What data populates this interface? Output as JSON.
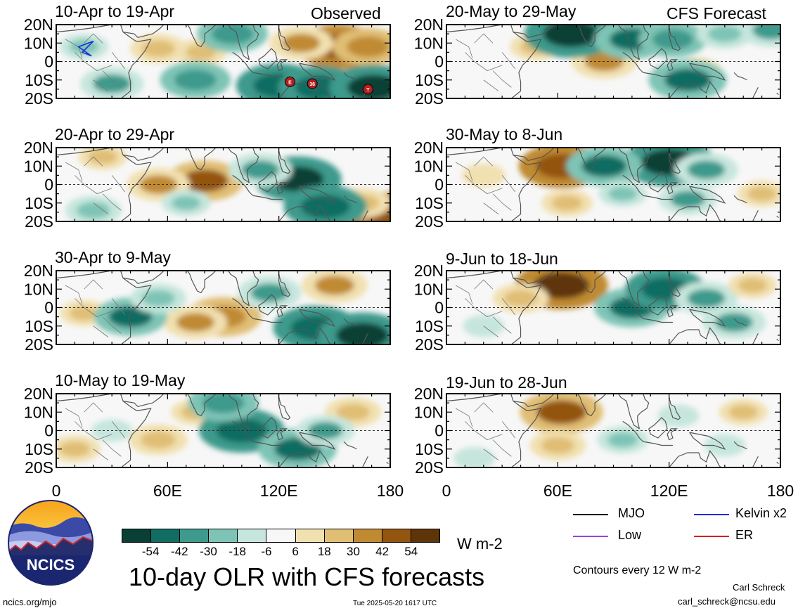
{
  "chart_data": {
    "type": "heatmap",
    "title": "10-day OLR with CFS forecasts",
    "columns": [
      {
        "header": "Observed",
        "panels": [
          "10-Apr to 19-Apr",
          "20-Apr to 29-Apr",
          "30-Apr to 9-May",
          "10-May to 19-May"
        ]
      },
      {
        "header": "CFS Forecast",
        "panels": [
          "20-May to 29-May",
          "30-May to 8-Jun",
          "9-Jun to 18-Jun",
          "19-Jun to 28-Jun"
        ]
      }
    ],
    "lat_ticks": [
      "20N",
      "10N",
      "0",
      "10S",
      "20S"
    ],
    "lon_ticks": [
      "0",
      "60E",
      "120E",
      "180"
    ],
    "xlim": [
      0,
      180
    ],
    "ylim": [
      -20,
      20
    ],
    "colorbar": {
      "labels": [
        "-54",
        "-42",
        "-30",
        "-18",
        "-6",
        "6",
        "18",
        "30",
        "42",
        "54"
      ],
      "colors": [
        "#0a3f35",
        "#116d62",
        "#3e9a8c",
        "#7ec4b6",
        "#c6e6dd",
        "#f7f7f7",
        "#f1e0b0",
        "#e0be74",
        "#c08a33",
        "#935510",
        "#5e3509"
      ],
      "units": "W m-2"
    },
    "legend": [
      {
        "label": "MJO",
        "color": "#000000"
      },
      {
        "label": "Kelvin x2",
        "color": "#1f2fd6"
      },
      {
        "label": "Low",
        "color": "#9b42d8"
      },
      {
        "label": "ER",
        "color": "#d81e1e"
      }
    ],
    "storm_markers": [
      "E",
      "36",
      "T"
    ],
    "anomalies": [
      [
        {
          "lon": 152,
          "lat": 8,
          "v": 48
        },
        {
          "lon": 132,
          "lat": 10,
          "v": 30
        },
        {
          "lon": 168,
          "lat": 8,
          "v": 36
        },
        {
          "lon": 55,
          "lat": 7,
          "v": 24
        },
        {
          "lon": 78,
          "lat": 5,
          "v": 20
        },
        {
          "lon": 120,
          "lat": -13,
          "v": -48
        },
        {
          "lon": 142,
          "lat": -14,
          "v": -46
        },
        {
          "lon": 171,
          "lat": -14,
          "v": -50
        },
        {
          "lon": 95,
          "lat": 15,
          "v": -36
        },
        {
          "lon": 75,
          "lat": -10,
          "v": -36
        },
        {
          "lon": 30,
          "lat": -12,
          "v": -30
        },
        {
          "lon": 15,
          "lat": 8,
          "v": -18
        }
      ],
      [
        {
          "lon": 80,
          "lat": 2,
          "v": 42
        },
        {
          "lon": 55,
          "lat": 0,
          "v": 30
        },
        {
          "lon": 25,
          "lat": 15,
          "v": 18
        },
        {
          "lon": 180,
          "lat": -16,
          "v": 48
        },
        {
          "lon": 165,
          "lat": -10,
          "v": 24
        },
        {
          "lon": 130,
          "lat": 3,
          "v": -50
        },
        {
          "lon": 145,
          "lat": -12,
          "v": -46
        },
        {
          "lon": 110,
          "lat": 8,
          "v": -30
        },
        {
          "lon": 20,
          "lat": -14,
          "v": -24
        },
        {
          "lon": 70,
          "lat": -10,
          "v": -18
        }
      ],
      [
        {
          "lon": 90,
          "lat": -5,
          "v": 40
        },
        {
          "lon": 75,
          "lat": -8,
          "v": 30
        },
        {
          "lon": 150,
          "lat": 12,
          "v": 32
        },
        {
          "lon": 15,
          "lat": -3,
          "v": 18
        },
        {
          "lon": 140,
          "lat": -11,
          "v": -48
        },
        {
          "lon": 165,
          "lat": -15,
          "v": -50
        },
        {
          "lon": 40,
          "lat": -5,
          "v": -38
        },
        {
          "lon": 115,
          "lat": 8,
          "v": -30
        },
        {
          "lon": 55,
          "lat": 5,
          "v": -24
        }
      ],
      [
        {
          "lon": 55,
          "lat": -5,
          "v": 26
        },
        {
          "lon": 10,
          "lat": -10,
          "v": 20
        },
        {
          "lon": 160,
          "lat": 10,
          "v": 24
        },
        {
          "lon": 75,
          "lat": 10,
          "v": 18
        },
        {
          "lon": 100,
          "lat": 0,
          "v": -48
        },
        {
          "lon": 130,
          "lat": -10,
          "v": -42
        },
        {
          "lon": 90,
          "lat": 15,
          "v": -36
        },
        {
          "lon": 145,
          "lat": 0,
          "v": -26
        },
        {
          "lon": 30,
          "lat": 0,
          "v": -12
        }
      ],
      [
        {
          "lon": 85,
          "lat": 0,
          "v": 32
        },
        {
          "lon": 48,
          "lat": 8,
          "v": 20
        },
        {
          "lon": 135,
          "lat": -5,
          "v": 18
        },
        {
          "lon": 67,
          "lat": 15,
          "v": -54
        },
        {
          "lon": 100,
          "lat": 12,
          "v": -40
        },
        {
          "lon": 122,
          "lat": 12,
          "v": -34
        },
        {
          "lon": 130,
          "lat": -10,
          "v": -42
        },
        {
          "lon": 175,
          "lat": 17,
          "v": -30
        },
        {
          "lon": 150,
          "lat": 15,
          "v": -24
        }
      ],
      [
        {
          "lon": 62,
          "lat": 10,
          "v": 48
        },
        {
          "lon": 65,
          "lat": -10,
          "v": 20
        },
        {
          "lon": 170,
          "lat": -5,
          "v": 18
        },
        {
          "lon": 20,
          "lat": 5,
          "v": 14
        },
        {
          "lon": 120,
          "lat": 12,
          "v": -54
        },
        {
          "lon": 85,
          "lat": 10,
          "v": -40
        },
        {
          "lon": 140,
          "lat": 8,
          "v": -30
        },
        {
          "lon": 130,
          "lat": -8,
          "v": -26
        },
        {
          "lon": 95,
          "lat": -5,
          "v": -18
        }
      ],
      [
        {
          "lon": 62,
          "lat": 12,
          "v": 54
        },
        {
          "lon": 40,
          "lat": 5,
          "v": 24
        },
        {
          "lon": 100,
          "lat": 0,
          "v": -40
        },
        {
          "lon": 118,
          "lat": 10,
          "v": -44
        },
        {
          "lon": 140,
          "lat": 5,
          "v": -30
        },
        {
          "lon": 155,
          "lat": -8,
          "v": -30
        },
        {
          "lon": 165,
          "lat": 12,
          "v": 18
        },
        {
          "lon": 20,
          "lat": -10,
          "v": -12
        }
      ],
      [
        {
          "lon": 62,
          "lat": 10,
          "v": 46
        },
        {
          "lon": 60,
          "lat": -8,
          "v": 24
        },
        {
          "lon": 160,
          "lat": 10,
          "v": 18
        },
        {
          "lon": 95,
          "lat": -5,
          "v": -20
        },
        {
          "lon": 125,
          "lat": 8,
          "v": -12
        },
        {
          "lon": 15,
          "lat": -15,
          "v": -12
        },
        {
          "lon": 150,
          "lat": -8,
          "v": -12
        }
      ]
    ]
  },
  "footer": {
    "contours_note": "Contours every 12 W m-2",
    "author": "Carl Schreck",
    "email": "carl_schreck@ncsu.edu",
    "website": "ncics.org/mjo",
    "timestamp": "Tue 2025-05-20 1617 UTC",
    "logo_text": "NCICS"
  }
}
